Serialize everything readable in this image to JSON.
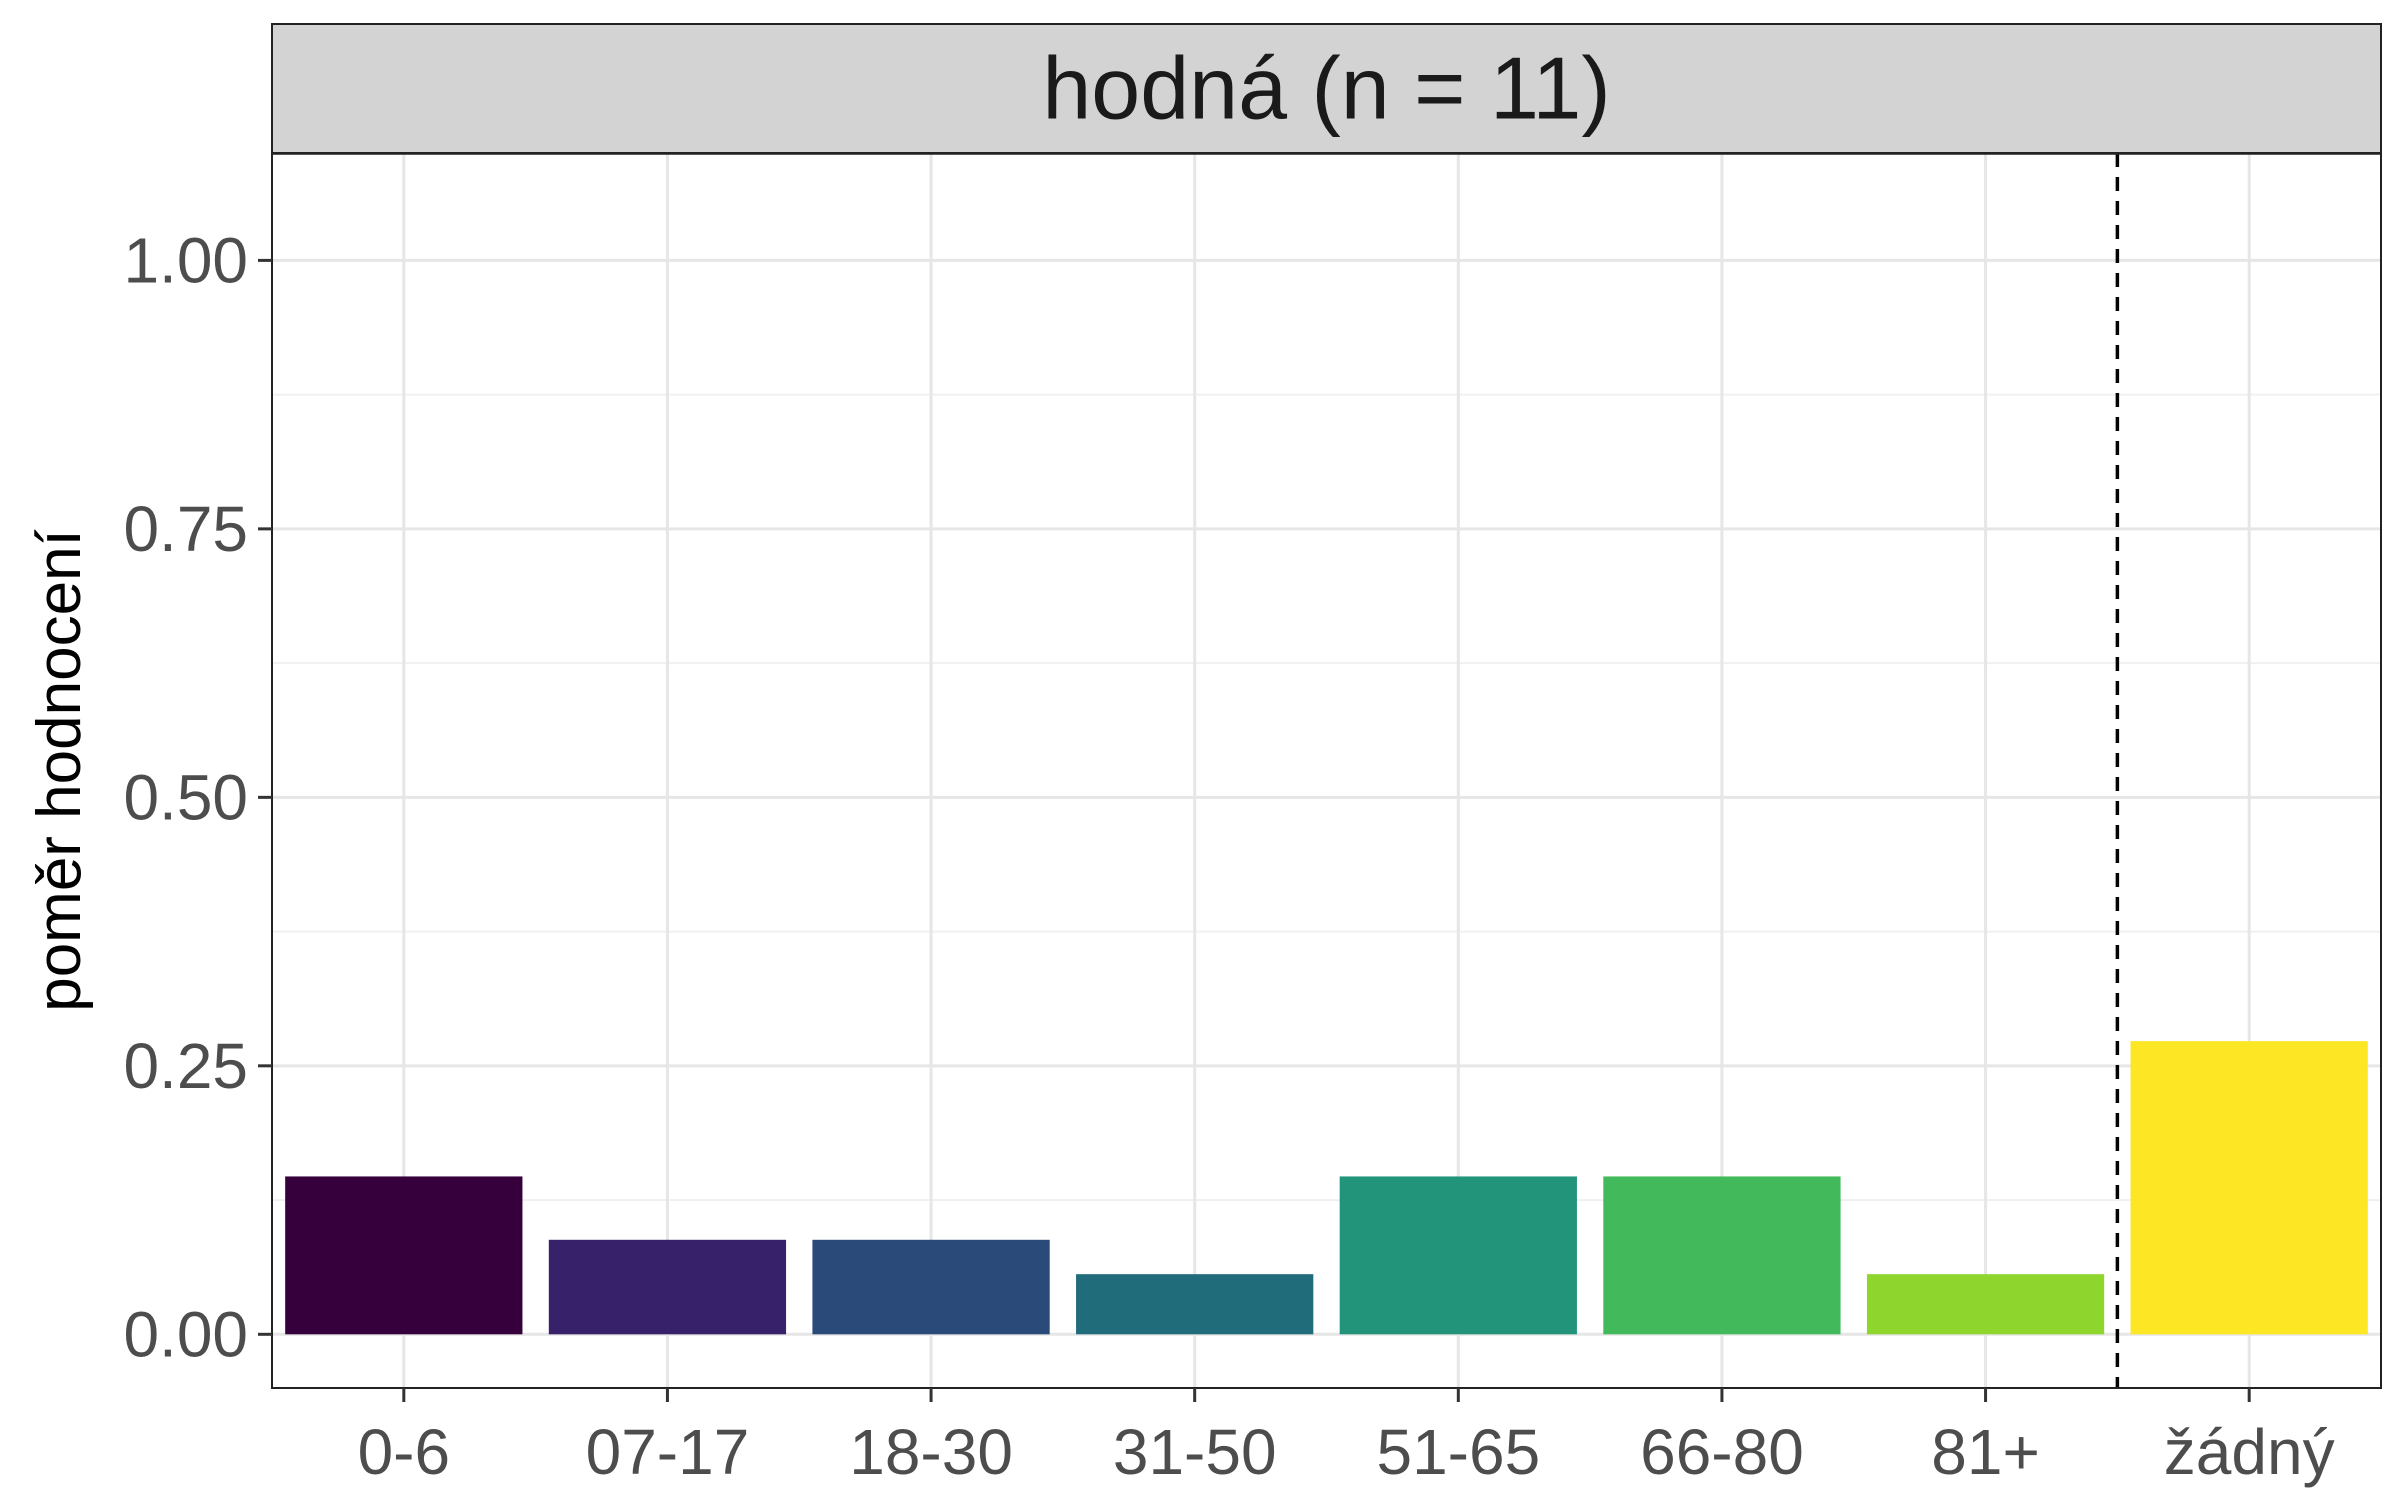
{
  "chart_data": {
    "type": "bar",
    "title": "hodná (n = 11)",
    "xlabel": "",
    "ylabel": "poměr hodnocení",
    "categories": [
      "0-6",
      "07-17",
      "18-30",
      "31-50",
      "51-65",
      "66-80",
      "81+",
      "žádný"
    ],
    "values": [
      0.147,
      0.088,
      0.088,
      0.056,
      0.147,
      0.147,
      0.056,
      0.273
    ],
    "colors": [
      "#35003C",
      "#36216A",
      "#2A4A7A",
      "#216C7A",
      "#21947A",
      "#42B95A",
      "#8ED52E",
      "#FDE725"
    ],
    "ylim": [
      -0.05,
      1.1
    ],
    "yticks": [
      0.0,
      0.25,
      0.5,
      0.75,
      1.0
    ],
    "ytick_labels": [
      "0.00",
      "0.25",
      "0.50",
      "0.75",
      "1.00"
    ],
    "separator_after_category": "81+",
    "separator_style": "dashed",
    "grid": true,
    "legend": "none",
    "panel_strip_color": "#D3D3D3"
  }
}
